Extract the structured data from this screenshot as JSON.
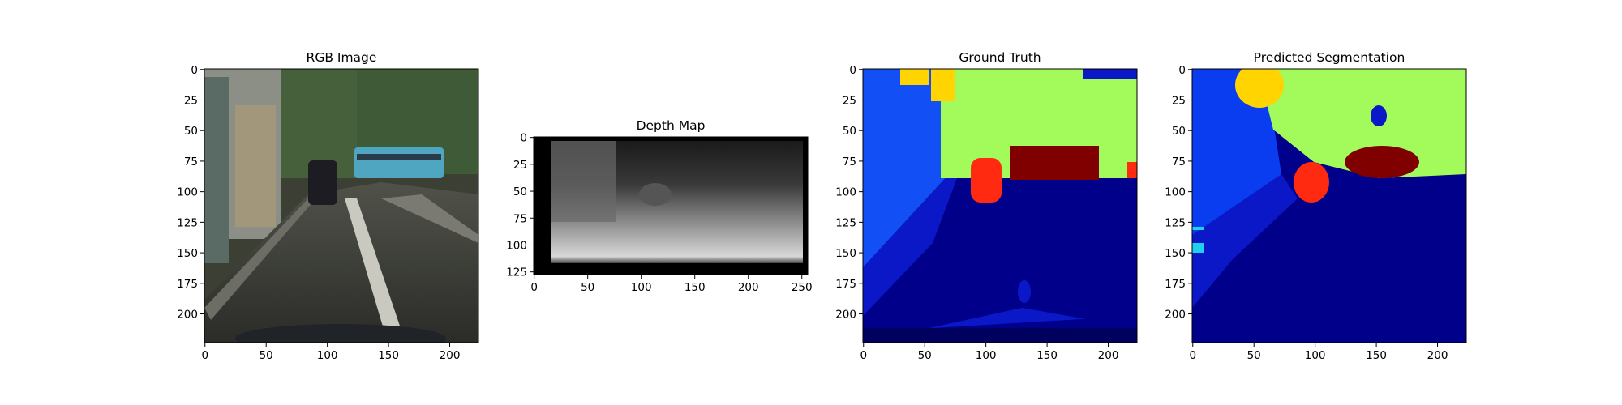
{
  "panels": [
    {
      "id": "rgb",
      "title": "RGB Image",
      "xticks": [
        "0",
        "50",
        "100",
        "150",
        "200"
      ],
      "yticks": [
        "0",
        "25",
        "50",
        "75",
        "100",
        "125",
        "150",
        "175",
        "200"
      ]
    },
    {
      "id": "depth",
      "title": "Depth Map",
      "xticks": [
        "0",
        "50",
        "100",
        "150",
        "200",
        "250"
      ],
      "yticks": [
        "0",
        "25",
        "50",
        "75",
        "100",
        "125"
      ]
    },
    {
      "id": "gt",
      "title": "Ground Truth",
      "xticks": [
        "0",
        "50",
        "100",
        "150",
        "200"
      ],
      "yticks": [
        "0",
        "25",
        "50",
        "75",
        "100",
        "125",
        "150",
        "175",
        "200"
      ]
    },
    {
      "id": "pred",
      "title": "Predicted Segmentation",
      "xticks": [
        "0",
        "50",
        "100",
        "150",
        "200"
      ],
      "yticks": [
        "0",
        "25",
        "50",
        "75",
        "100",
        "125",
        "150",
        "175",
        "200"
      ]
    }
  ],
  "colors": {
    "sky_rgb": "#e7eef2",
    "road_rgb": "#3a3b36",
    "tree_rgb": "#3f5a36",
    "bus": "#4fa6c0",
    "seg_navy": "#00008b",
    "seg_darkblue": "#0b18c8",
    "seg_blue": "#0a3cf0",
    "seg_mid": "#1250f5",
    "seg_green": "#a2fb5a",
    "seg_yellow": "#ffd400",
    "seg_red": "#ff2a10",
    "seg_maroon": "#800000",
    "seg_cyan": "#20d0f0"
  }
}
